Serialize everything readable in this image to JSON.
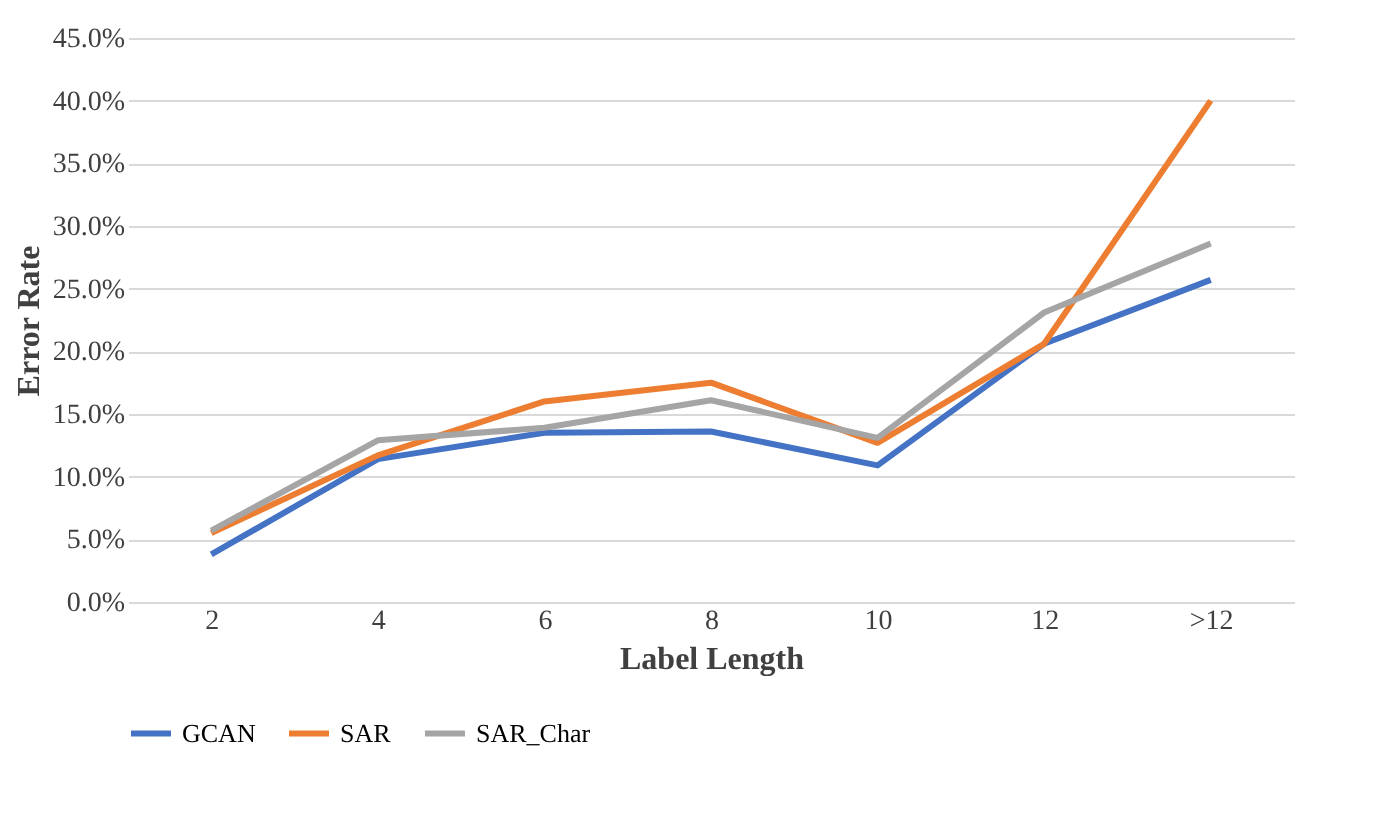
{
  "chart_data": {
    "type": "line",
    "xlabel": "Label Length",
    "ylabel": "Error Rate",
    "categories": [
      "2",
      "4",
      "6",
      "8",
      "10",
      "12",
      ">12"
    ],
    "series": [
      {
        "name": "GCAN",
        "color": "#4472c4",
        "values": [
          3.8,
          11.4,
          13.5,
          13.6,
          10.9,
          20.6,
          25.7
        ]
      },
      {
        "name": "SAR",
        "color": "#ed7d31",
        "values": [
          5.5,
          11.7,
          16.0,
          17.5,
          12.7,
          20.6,
          40.0
        ]
      },
      {
        "name": "SAR_Char",
        "color": "#a5a5a5",
        "values": [
          5.7,
          12.9,
          13.9,
          16.1,
          13.1,
          23.1,
          28.6
        ]
      }
    ],
    "ylim": [
      0,
      45
    ],
    "yticks": [
      {
        "value": 0,
        "label": "0.0%"
      },
      {
        "value": 5,
        "label": "5.0%"
      },
      {
        "value": 10,
        "label": "10.0%"
      },
      {
        "value": 15,
        "label": "15.0%"
      },
      {
        "value": 20,
        "label": "20.0%"
      },
      {
        "value": 25,
        "label": "25.0%"
      },
      {
        "value": 30,
        "label": "30.0%"
      },
      {
        "value": 35,
        "label": "35.0%"
      },
      {
        "value": 40,
        "label": "40.0%"
      },
      {
        "value": 45,
        "label": "45.0%"
      }
    ],
    "grid": "y",
    "legend": "bottom",
    "marker": "none",
    "line_style": "solid"
  }
}
